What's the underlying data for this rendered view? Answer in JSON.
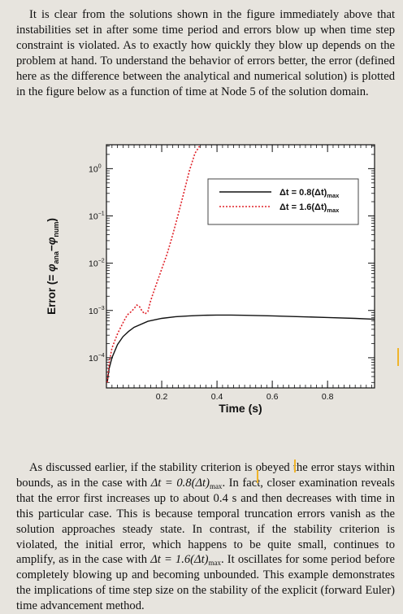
{
  "paragraph_1": {
    "text": "It is clear from the solutions shown in the figure immediately above that instabilities set in after some time period and errors blow up when time step constraint is violated. As to exactly how quickly they blow up depends on the problem at hand. To understand the behavior of errors better, the error (defined here as the difference between the analytical and numerical solution) is plotted in the figure below as a function of time at Node 5 of the solution domain."
  },
  "paragraph_2": {
    "part_1": "As discussed earlier, if the stability criterion is obeyed the error stays within bounds, as in the case with ",
    "dt_symbol_1": "Δt = 0.8(Δt)",
    "max_sub_1": "max",
    "part_2": ". In fact, closer examination reveals that the error first increases up to about 0.4 s and then decreases with time in this particular case. This is because temporal truncation errors vanish as the solution approaches steady state. In contrast, if the stability criterion is violated, the initial error, which happens to be quite small, continues to amplify, as in the case with ",
    "dt_symbol_2": "Δt = 1.6(Δt)",
    "max_sub_2": "max",
    "part_3": ". It oscillates for some period before completely blowing up and becoming unbounded. This example demonstrates the implications of time step size on the stability of the explicit (forward Euler) time advancement method."
  },
  "chart_data": {
    "type": "line",
    "xlabel": "Time (s)",
    "ylabel": "Error (= φana − φnum)",
    "ylabel_parts": {
      "prefix": "Error (= ",
      "phi": "φ",
      "sub_ana": "ana",
      "minus": "−",
      "sub_num": "num",
      "suffix": ")"
    },
    "log_y": true,
    "xlim": [
      0,
      0.97
    ],
    "ylim": [
      2.3e-05,
      3.2
    ],
    "x_ticks": [
      0.2,
      0.4,
      0.6,
      0.8
    ],
    "x_tick_labels": [
      "0.2",
      "0.4",
      "0.6",
      "0.8"
    ],
    "y_ticks": [
      1,
      0.1,
      0.01,
      0.001,
      0.0001
    ],
    "y_tick_labels": [
      {
        "base": "10",
        "exp": "0"
      },
      {
        "base": "10",
        "exp": "−1"
      },
      {
        "base": "10",
        "exp": "−2"
      },
      {
        "base": "10",
        "exp": "−3"
      },
      {
        "base": "10",
        "exp": "−4"
      }
    ],
    "legend_position": "top-right",
    "series": [
      {
        "name": "Δt = 0.8(Δt)max",
        "label_main": "Δt = 0.8(Δt)",
        "label_sub": "max",
        "style": "solid",
        "color": "#111111",
        "x": [
          0.003,
          0.01,
          0.02,
          0.04,
          0.06,
          0.08,
          0.1,
          0.15,
          0.2,
          0.25,
          0.3,
          0.35,
          0.4,
          0.45,
          0.5,
          0.6,
          0.7,
          0.8,
          0.9,
          0.97
        ],
        "y": [
          3e-05,
          6e-05,
          0.0001,
          0.00019,
          0.00028,
          0.00036,
          0.00044,
          0.00059,
          0.00068,
          0.00074,
          0.00077,
          0.00079,
          0.0008,
          0.0008,
          0.00079,
          0.00077,
          0.00074,
          0.00071,
          0.00068,
          0.00065
        ]
      },
      {
        "name": "Δt = 1.6(Δt)max",
        "label_main": "Δt = 1.6(Δt)",
        "label_sub": "max",
        "style": "dotted",
        "color": "#e0232a",
        "x": [
          0.003,
          0.01,
          0.02,
          0.04,
          0.06,
          0.075,
          0.09,
          0.1,
          0.11,
          0.12,
          0.13,
          0.14,
          0.15,
          0.16,
          0.17,
          0.18,
          0.2,
          0.22,
          0.24,
          0.26,
          0.28,
          0.3,
          0.32,
          0.34
        ],
        "y": [
          3e-05,
          8e-05,
          0.00016,
          0.00032,
          0.00055,
          0.0008,
          0.00095,
          0.0011,
          0.0013,
          0.0012,
          0.00095,
          0.00085,
          0.00095,
          0.0016,
          0.0024,
          0.0035,
          0.0075,
          0.016,
          0.04,
          0.11,
          0.31,
          0.9,
          2.1,
          3.2
        ]
      }
    ]
  }
}
